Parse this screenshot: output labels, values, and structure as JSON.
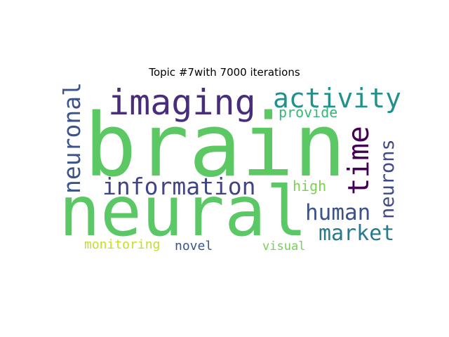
{
  "title": "Topic #7with 7000 iterations",
  "words": {
    "brain": {
      "text": "brain",
      "color": "#5cc863"
    },
    "neural": {
      "text": "neural",
      "color": "#5ac864"
    },
    "imaging": {
      "text": "imaging",
      "color": "#472d7b"
    },
    "activity": {
      "text": "activity",
      "color": "#21918c"
    },
    "neuronal": {
      "text": "neuronal",
      "color": "#3b528b"
    },
    "information": {
      "text": "information",
      "color": "#414487"
    },
    "time": {
      "text": "time",
      "color": "#440154"
    },
    "neurons": {
      "text": "neurons",
      "color": "#3e4a89"
    },
    "human": {
      "text": "human",
      "color": "#3b528b"
    },
    "market": {
      "text": "market",
      "color": "#2a788e"
    },
    "provide": {
      "text": "provide",
      "color": "#35b779"
    },
    "high": {
      "text": "high",
      "color": "#7ad151"
    },
    "monitoring": {
      "text": "monitoring",
      "color": "#c2df23"
    },
    "novel": {
      "text": "novel",
      "color": "#39568c"
    },
    "visual": {
      "text": "visual",
      "color": "#75d054"
    }
  }
}
